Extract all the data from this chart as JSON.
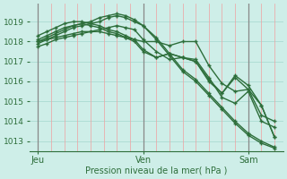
{
  "bg_color": "#ceeee8",
  "grid_h_color": "#b0ddd5",
  "grid_v_color": "#f0a0a0",
  "line_color": "#2d6e3a",
  "xlabel": "Pression niveau de la mer( hPa )",
  "xtick_labels": [
    "Jeu",
    "Ven",
    "Sam"
  ],
  "xtick_positions": [
    0,
    48,
    96
  ],
  "ytick_labels": [
    1013,
    1014,
    1015,
    1016,
    1017,
    1018,
    1019
  ],
  "ylim": [
    1012.5,
    1019.9
  ],
  "xlim": [
    -4,
    112
  ],
  "vline_color": "#888888",
  "series": [
    {
      "x": [
        0,
        4,
        8,
        12,
        16,
        20,
        24,
        28,
        32,
        36,
        40,
        44,
        48,
        54,
        60,
        66,
        72,
        78,
        84,
        90,
        96,
        102,
        108
      ],
      "y": [
        1017.9,
        1018.1,
        1018.3,
        1018.5,
        1018.7,
        1018.8,
        1018.9,
        1019.0,
        1019.2,
        1019.3,
        1019.2,
        1019.0,
        1018.8,
        1018.1,
        1017.3,
        1016.5,
        1016.0,
        1015.3,
        1014.6,
        1013.9,
        1013.3,
        1012.9,
        1012.65
      ]
    },
    {
      "x": [
        0,
        4,
        8,
        12,
        16,
        20,
        24,
        28,
        32,
        36,
        40,
        44,
        48,
        54,
        60,
        66,
        72,
        78,
        84,
        90,
        96,
        102,
        108
      ],
      "y": [
        1018.0,
        1018.2,
        1018.4,
        1018.6,
        1018.8,
        1018.9,
        1019.0,
        1019.2,
        1019.3,
        1019.4,
        1019.3,
        1019.1,
        1018.8,
        1018.2,
        1017.4,
        1016.6,
        1016.1,
        1015.4,
        1014.7,
        1014.0,
        1013.4,
        1013.0,
        1012.7
      ]
    },
    {
      "x": [
        0,
        4,
        8,
        12,
        16,
        20,
        24,
        28,
        32,
        36,
        40,
        44,
        48,
        54,
        60,
        66,
        72,
        78,
        84,
        90,
        96,
        102,
        108
      ],
      "y": [
        1018.0,
        1018.1,
        1018.2,
        1018.3,
        1018.4,
        1018.5,
        1018.5,
        1018.5,
        1018.4,
        1018.3,
        1018.2,
        1018.1,
        1018.0,
        1018.0,
        1017.8,
        1018.0,
        1018.0,
        1016.8,
        1015.9,
        1015.5,
        1015.6,
        1014.3,
        1014.0
      ]
    },
    {
      "x": [
        0,
        4,
        8,
        12,
        16,
        20,
        24,
        28,
        32,
        36,
        40,
        44,
        48,
        54,
        60,
        66,
        72,
        78,
        84,
        90,
        96,
        102,
        108
      ],
      "y": [
        1017.75,
        1017.9,
        1018.1,
        1018.2,
        1018.3,
        1018.4,
        1018.5,
        1018.6,
        1018.7,
        1018.8,
        1018.7,
        1018.6,
        1018.1,
        1017.5,
        1017.1,
        1017.2,
        1017.1,
        1016.2,
        1015.2,
        1014.9,
        1015.5,
        1014.0,
        1013.7
      ]
    },
    {
      "x": [
        0,
        4,
        8,
        12,
        16,
        20,
        24,
        28,
        32,
        36,
        40,
        44,
        48,
        54,
        60,
        66,
        72,
        78,
        84,
        90,
        96,
        102,
        108
      ],
      "y": [
        1018.1,
        1018.3,
        1018.5,
        1018.7,
        1018.8,
        1018.9,
        1018.8,
        1018.7,
        1018.5,
        1018.4,
        1018.2,
        1018.0,
        1017.5,
        1017.2,
        1017.4,
        1017.2,
        1017.0,
        1016.1,
        1015.4,
        1016.3,
        1015.8,
        1014.8,
        1013.2
      ]
    },
    {
      "x": [
        0,
        4,
        8,
        12,
        16,
        20,
        24,
        28,
        32,
        36,
        40,
        44,
        48,
        54,
        60,
        66,
        72,
        78,
        84,
        90,
        96,
        102,
        108
      ],
      "y": [
        1018.3,
        1018.5,
        1018.7,
        1018.9,
        1019.0,
        1019.0,
        1018.9,
        1018.8,
        1018.6,
        1018.5,
        1018.3,
        1018.1,
        1017.6,
        1017.2,
        1017.4,
        1017.2,
        1017.0,
        1016.0,
        1015.4,
        1016.2,
        1015.6,
        1014.8,
        1013.2
      ]
    }
  ]
}
